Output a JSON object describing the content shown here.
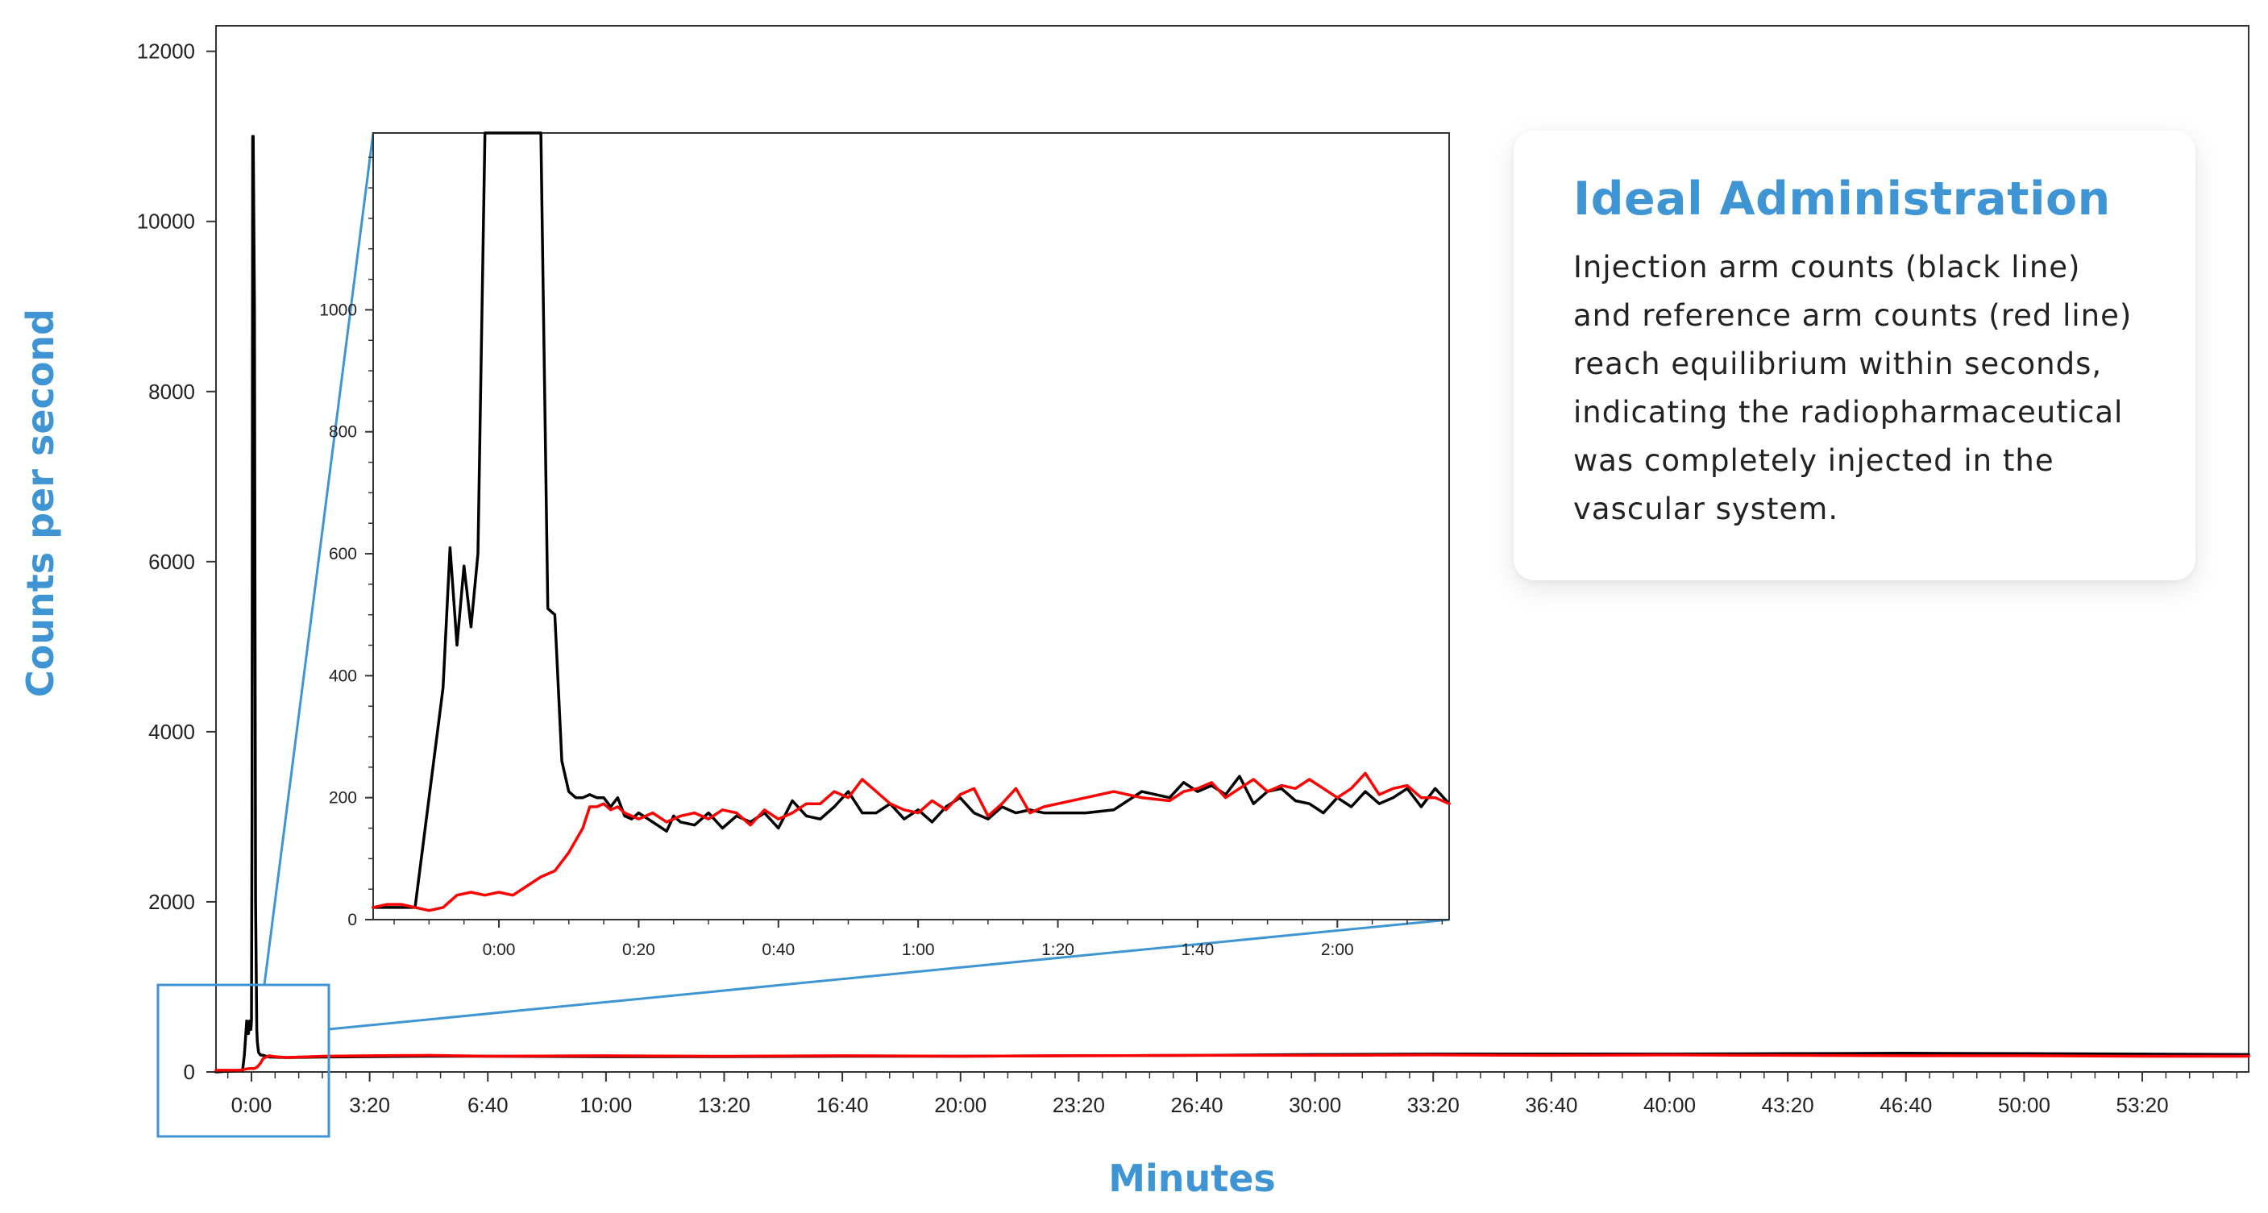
{
  "chart_data": [
    {
      "type": "line",
      "title": "",
      "xlabel": "Minutes",
      "ylabel": "Counts per second",
      "xlim": [
        -60,
        3380
      ],
      "ylim": [
        0,
        12300
      ],
      "x_ticks": [
        0,
        200,
        400,
        600,
        800,
        1000,
        1200,
        1400,
        1600,
        1800,
        2000,
        2200,
        2400,
        2600,
        2800,
        3000,
        3200
      ],
      "x_tick_labels": [
        "0:00",
        "3:20",
        "6:40",
        "10:00",
        "13:20",
        "16:40",
        "20:00",
        "23:20",
        "26:40",
        "30:00",
        "33:20",
        "36:40",
        "40:00",
        "43:20",
        "46:40",
        "50:00",
        "53:20"
      ],
      "y_ticks": [
        0,
        2000,
        4000,
        6000,
        8000,
        10000,
        12000
      ],
      "y_tick_labels": [
        "0",
        "2000",
        "4000",
        "6000",
        "8000",
        "10000",
        "12000"
      ],
      "series": [
        {
          "color": "#000000",
          "x": [
            -60,
            -15,
            -12,
            -8,
            -5,
            -3,
            -1,
            0,
            1,
            2,
            3,
            5,
            7,
            9,
            10,
            12,
            15,
            20,
            30,
            60,
            120,
            200,
            300,
            400,
            600,
            800,
            1000,
            1200,
            1400,
            1600,
            1800,
            2000,
            2200,
            2400,
            2600,
            2800,
            3000,
            3200,
            3380
          ],
          "y": [
            0,
            20,
            200,
            600,
            450,
            600,
            500,
            600,
            3000,
            11000,
            11000,
            9000,
            2000,
            500,
            350,
            230,
            200,
            195,
            175,
            170,
            175,
            180,
            185,
            185,
            180,
            180,
            185,
            185,
            190,
            195,
            205,
            210,
            210,
            210,
            215,
            220,
            215,
            210,
            205
          ]
        },
        {
          "color": "#ff0000",
          "x": [
            -60,
            -20,
            -5,
            5,
            10,
            15,
            20,
            30,
            40,
            60,
            120,
            200,
            300,
            400,
            600,
            800,
            1000,
            1200,
            1400,
            1600,
            1800,
            2000,
            2200,
            2400,
            2600,
            2800,
            3000,
            3200,
            3380
          ],
          "y": [
            20,
            20,
            40,
            40,
            60,
            100,
            160,
            190,
            180,
            170,
            185,
            190,
            195,
            185,
            190,
            185,
            190,
            185,
            190,
            195,
            195,
            200,
            195,
            200,
            195,
            190,
            190,
            185,
            185
          ]
        }
      ]
    },
    {
      "type": "line",
      "title": "",
      "xlabel": "",
      "ylabel": "",
      "xlim": [
        -18,
        136
      ],
      "ylim": [
        0,
        1290
      ],
      "x_ticks": [
        0,
        20,
        40,
        60,
        80,
        100,
        120
      ],
      "x_tick_labels": [
        "0:00",
        "0:20",
        "0:40",
        "1:00",
        "1:20",
        "1:40",
        "2:00"
      ],
      "y_ticks": [
        0,
        200,
        400,
        600,
        800,
        1000
      ],
      "y_tick_labels": [
        "0",
        "200",
        "400",
        "600",
        "800",
        "1000"
      ],
      "series": [
        {
          "color": "#000000",
          "x": [
            -18,
            -16,
            -14,
            -12,
            -8,
            -7,
            -6,
            -5,
            -4,
            -3,
            -2,
            -1,
            0,
            1,
            2,
            3,
            4,
            5,
            6,
            7,
            8,
            9,
            10,
            11,
            12,
            13,
            14,
            15,
            16,
            17,
            18,
            19,
            20,
            22,
            24,
            25,
            26,
            28,
            30,
            32,
            34,
            36,
            38,
            40,
            42,
            44,
            46,
            48,
            50,
            52,
            54,
            56,
            58,
            60,
            62,
            64,
            66,
            68,
            70,
            72,
            74,
            76,
            78,
            80,
            84,
            88,
            92,
            96,
            98,
            100,
            102,
            104,
            106,
            108,
            110,
            112,
            114,
            116,
            118,
            120,
            122,
            124,
            126,
            128,
            130,
            132,
            134,
            136
          ],
          "y": [
            20,
            20,
            20,
            20,
            380,
            610,
            450,
            580,
            480,
            600,
            1290,
            1290,
            1290,
            1290,
            1290,
            1290,
            1290,
            1290,
            1290,
            510,
            500,
            260,
            210,
            200,
            200,
            205,
            200,
            200,
            185,
            200,
            170,
            165,
            175,
            160,
            145,
            170,
            160,
            155,
            175,
            150,
            170,
            160,
            175,
            150,
            195,
            170,
            165,
            185,
            210,
            175,
            175,
            190,
            165,
            180,
            160,
            185,
            200,
            175,
            165,
            185,
            175,
            180,
            175,
            175,
            175,
            180,
            210,
            200,
            225,
            210,
            220,
            205,
            235,
            190,
            210,
            215,
            195,
            190,
            175,
            200,
            185,
            210,
            190,
            200,
            215,
            185,
            215,
            190
          ]
        },
        {
          "color": "#ff0000",
          "x": [
            -18,
            -16,
            -14,
            -12,
            -10,
            -8,
            -6,
            -4,
            -2,
            0,
            2,
            4,
            6,
            8,
            10,
            11,
            12,
            13,
            14,
            15,
            16,
            17,
            18,
            20,
            22,
            24,
            26,
            28,
            30,
            32,
            34,
            36,
            38,
            40,
            42,
            44,
            46,
            48,
            50,
            52,
            54,
            56,
            58,
            60,
            62,
            64,
            66,
            68,
            70,
            72,
            74,
            76,
            78,
            80,
            84,
            88,
            92,
            96,
            98,
            100,
            102,
            104,
            106,
            108,
            110,
            112,
            114,
            116,
            118,
            120,
            122,
            124,
            126,
            128,
            130,
            132,
            134,
            136
          ],
          "y": [
            20,
            25,
            25,
            20,
            15,
            20,
            40,
            45,
            40,
            45,
            40,
            55,
            70,
            80,
            110,
            130,
            150,
            185,
            185,
            190,
            180,
            185,
            175,
            165,
            175,
            160,
            170,
            175,
            165,
            180,
            175,
            155,
            180,
            165,
            175,
            190,
            190,
            210,
            200,
            230,
            210,
            190,
            180,
            175,
            195,
            180,
            205,
            215,
            170,
            190,
            215,
            175,
            185,
            190,
            200,
            210,
            200,
            195,
            210,
            215,
            225,
            200,
            215,
            230,
            210,
            220,
            215,
            230,
            215,
            200,
            215,
            240,
            205,
            215,
            220,
            200,
            200,
            190
          ]
        }
      ]
    }
  ],
  "callout": {
    "title": "Ideal Administration",
    "lines": [
      "Injection arm counts (black line)",
      "and reference arm counts (red line)",
      "reach equilibrium within seconds,",
      "indicating the radiopharmaceutical",
      "was completely injected in the",
      "vascular system."
    ]
  },
  "colors": {
    "accent": "#3f95d3",
    "injection_line": "#000000",
    "reference_line": "#ff0000"
  }
}
